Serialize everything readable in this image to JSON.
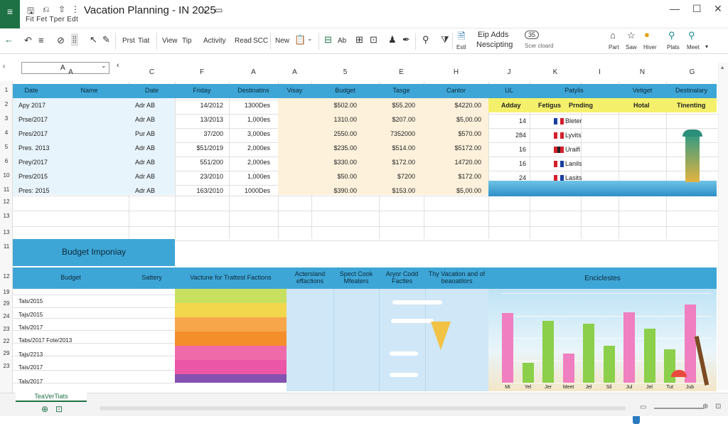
{
  "window": {
    "title": "Vacation Planning - IN 2025",
    "subtitle_arrow": "›",
    "menu": "Fit  Fet  Tper  Edt"
  },
  "ribbon": {
    "items": [
      "Prst",
      "Tiat",
      "View",
      "Tip",
      "Activity",
      "Read",
      "SCC",
      "New",
      "Ab",
      "Eip Adds",
      "Nescipting",
      "Estl",
      "Scer cloard",
      "Part",
      "Saw",
      "Hiver",
      "Plats",
      "Meet"
    ],
    "counter": "35"
  },
  "name_box": {
    "value": "A"
  },
  "columns": [
    "A",
    "C",
    "F",
    "A",
    "A",
    "5",
    "E",
    "H",
    "J",
    "K",
    "I",
    "N",
    "G"
  ],
  "rows": [
    "1",
    "2",
    "3",
    "4",
    "5",
    "6",
    "10",
    "11",
    "12",
    "13",
    "13",
    "11",
    "12",
    "19",
    "29",
    "24",
    "23",
    "22",
    "29",
    "23"
  ],
  "top_header": [
    "Date",
    "Name",
    "Date",
    "Friday",
    "Destinatins",
    "Visay",
    "Budget",
    "Tasge",
    "Cantor",
    "UL",
    "Patylis",
    "Vetiget",
    "Destinalary"
  ],
  "top_rows": [
    [
      "Apy 2017",
      "Adr AB",
      "14/2012",
      "1300Des",
      "$502.00",
      "$55.200",
      "$4220.00"
    ],
    [
      "Prse/2017",
      "Adr AB",
      "13/2013",
      "1,000es",
      "1310.00",
      "$207.00",
      "$5,00.00"
    ],
    [
      "Pres/2017",
      "Pur AB",
      "37/200",
      "3,000es",
      "2550.00",
      "7352000",
      "$570.00"
    ],
    [
      "Pres. 2013",
      "Adr AB",
      "$51/2019",
      "2,000es",
      "$235.00",
      "$514.00",
      "$5172.00"
    ],
    [
      "Prey/2017",
      "Adr AB",
      "551/200",
      "2,000es",
      "$330.00",
      "$172.00",
      "14720.00"
    ],
    [
      "Pres/2015",
      "Adr AB",
      "23/2010",
      "1,000es",
      "$50.00",
      "$7200",
      "$172.00"
    ],
    [
      "Pres: 2015",
      "Adr AB",
      "163/2010",
      "1000Des",
      "$390.00",
      "$153.00",
      "$5,00.00"
    ]
  ],
  "right_row2": {
    "a": "Adday",
    "b": "Fetigus",
    "c": "Prnding",
    "d": "Hotal",
    "e": "Tinenting"
  },
  "flag_rows": [
    {
      "num": "14",
      "label": "Bleter"
    },
    {
      "num": "284",
      "label": "Lyvits"
    },
    {
      "num": "16",
      "label": "Uraifl"
    },
    {
      "num": "16",
      "label": "Lanils"
    },
    {
      "num": "24",
      "label": "Lasits"
    }
  ],
  "budget_title": "Budget Imponiay",
  "bottom_header": [
    "Budget",
    "Sattery",
    "Vactune for Trattest Factions",
    "Actersland effactions",
    "Spect Cook Mfeaters",
    "Aryor Codd Factles",
    "Thy Vacation and of beaoatilors",
    "Enciclestes"
  ],
  "bottom_rows": [
    "Tals/2015",
    "Tajs/2015",
    "Tals/2017",
    "Tabs/2017 Fote/2013",
    "Tajs/2213",
    "Tais/2017",
    "Tals/2017"
  ],
  "colors": {
    "header_blue": "#3ea6d6",
    "excel_green": "#1e7145",
    "yellow": "#f5f06b",
    "beige": "#fdf1dc"
  },
  "swatches": [
    "#c8e060",
    "#f2d64b",
    "#f7a64a",
    "#f48e2b",
    "#ef6aa8",
    "#ec56a6",
    "#8452b0"
  ],
  "chart_data": {
    "type": "bar",
    "categories": [
      "Mi",
      "Yel",
      "Jer",
      "Meet",
      "Jel",
      "Sil",
      "Jul",
      "Jel",
      "Tut",
      "Jub"
    ],
    "series": [
      {
        "values": [
          62,
          18,
          55,
          26,
          53,
          33,
          63,
          48,
          30,
          70
        ]
      }
    ],
    "colors": [
      "#ef7fc0",
      "#8bcf4a",
      "#8bcf4a",
      "#ef7fc0",
      "#8bcf4a",
      "#8bcf4a",
      "#ef7fc0",
      "#8bcf4a",
      "#8bcf4a",
      "#ef7fc0"
    ],
    "ylim": [
      0,
      80
    ],
    "grid": true
  },
  "sheet_tab": "TeaVerTiats"
}
